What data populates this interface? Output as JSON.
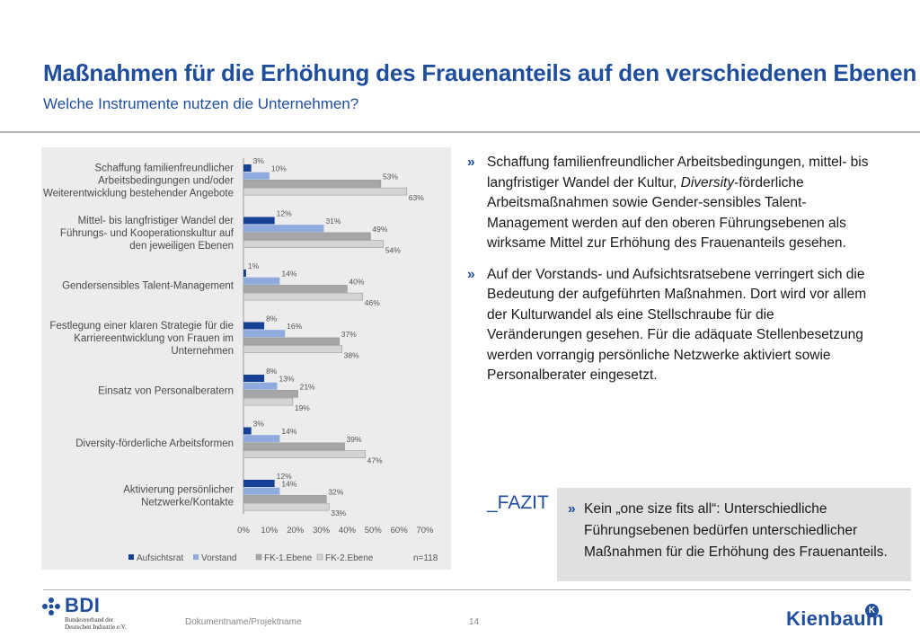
{
  "header": {
    "title": "Maßnahmen für die Erhöhung des Frauenanteils auf den verschiedenen Ebenen",
    "subtitle": "Welche Instrumente nutzen die Unternehmen?"
  },
  "colors": {
    "accent": "#1f4e9c",
    "series": [
      "#163f96",
      "#8faadc",
      "#a6a6a6",
      "#d4d4d4"
    ]
  },
  "chart_data": {
    "type": "bar",
    "orientation": "horizontal",
    "categories": [
      [
        "Schaffung familienfreundlicher",
        "Arbeitsbedingungen und/oder",
        "Weiterentwicklung bestehender Angebote"
      ],
      [
        "Mittel- bis langfristiger Wandel der",
        "Führungs- und Kooperationskultur auf",
        "den jeweiligen Ebenen"
      ],
      [
        "Gendersensibles Talent-Management"
      ],
      [
        "Festlegung einer klaren Strategie für die",
        "Karriereentwicklung von Frauen im",
        "Unternehmen"
      ],
      [
        "Einsatz von Personalberatern"
      ],
      [
        "Diversity-förderliche Arbeitsformen"
      ],
      [
        "Aktivierung persönlicher",
        "Netzwerke/Kontakte"
      ]
    ],
    "series": [
      {
        "name": "Aufsichtsrat",
        "values": [
          3,
          12,
          1,
          8,
          8,
          3,
          12
        ]
      },
      {
        "name": "Vorstand",
        "values": [
          10,
          31,
          14,
          16,
          13,
          14,
          14
        ]
      },
      {
        "name": "FK-1.Ebene",
        "values": [
          53,
          49,
          40,
          37,
          21,
          39,
          32
        ]
      },
      {
        "name": "FK-2.Ebene",
        "values": [
          63,
          54,
          46,
          38,
          19,
          47,
          33
        ]
      }
    ],
    "x_ticks": [
      "0%",
      "10%",
      "20%",
      "30%",
      "40%",
      "50%",
      "60%",
      "70%"
    ],
    "xlim": [
      0,
      70
    ],
    "value_suffix": "%",
    "legend": "bottom",
    "note": "n=118"
  },
  "bullets": [
    {
      "mark": "»",
      "before": "Schaffung familienfreundlicher Arbeitsbedingungen, mittel- bis langfristiger Wandel der Kultur, ",
      "emphasis": "Diversity",
      "after": "-förderliche Arbeitsmaßnahmen sowie Gender-sensibles Talent-Management werden auf den oberen Führungsebenen als wirksame Mittel zur Erhöhung des Frauenanteils gesehen."
    },
    {
      "mark": "»",
      "text": "Auf der Vorstands- und Aufsichtsratsebene verringert sich die Bedeutung der aufgeführten Maßnahmen. Dort wird vor allem der Kulturwandel als eine Stellschraube für die Veränderungen gesehen. Für die adäquate Stellenbesetzung werden vorrangig persönliche Netzwerke aktiviert sowie Personalberater eingesetzt."
    }
  ],
  "fazit": {
    "label": "_FAZIT",
    "mark": "»",
    "text": "Kein „one size fits all“: Unterschiedliche Führungsebenen bedürfen unterschiedlicher Maßnahmen für die Erhöhung des Frauenanteils."
  },
  "footer": {
    "doc_name": "Dokumentname/Projektname",
    "page_number": "14",
    "bdi": {
      "name": "BDI",
      "sub": [
        "Bundesverband der",
        "Deutschen Industrie e.V."
      ]
    },
    "kienbaum": {
      "name": "Kienbaum",
      "badge": "K"
    }
  }
}
